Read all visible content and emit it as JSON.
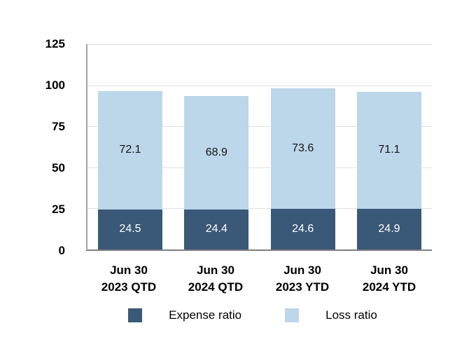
{
  "chart_data": {
    "type": "bar",
    "subtype": "stacked",
    "title": "",
    "categories": [
      [
        "Jun 30",
        "2023 QTD"
      ],
      [
        "Jun 30",
        "2024 QTD"
      ],
      [
        "Jun 30",
        "2023 YTD"
      ],
      [
        "Jun 30",
        "2024 YTD"
      ]
    ],
    "series": [
      {
        "name": "Expense ratio",
        "values": [
          24.5,
          24.4,
          24.6,
          24.9
        ],
        "color": "#3a5877",
        "label_color": "#ffffff"
      },
      {
        "name": "Loss ratio",
        "values": [
          72.1,
          68.9,
          73.6,
          71.1
        ],
        "color": "#bcd6ea",
        "label_color": "#141414"
      }
    ],
    "y_axis": {
      "min": 0,
      "max": 125,
      "ticks": [
        0,
        25,
        50,
        75,
        100,
        125
      ]
    },
    "grid": true,
    "value_labels": true,
    "legend_position": "bottom"
  }
}
